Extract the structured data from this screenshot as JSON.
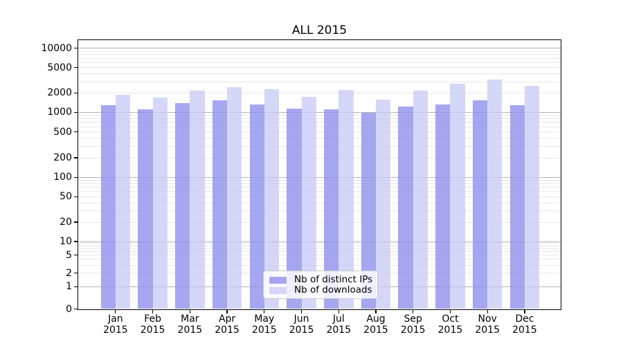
{
  "figure": {
    "background": "#ffffff",
    "axis_color": "#000000"
  },
  "chart_data": {
    "type": "bar",
    "title": "ALL 2015",
    "categories": [
      "Jan",
      "Feb",
      "Mar",
      "Apr",
      "May",
      "Jun",
      "Jul",
      "Aug",
      "Sep",
      "Oct",
      "Nov",
      "Dec"
    ],
    "x_tick_year_line": "2015",
    "series": [
      {
        "name": "Nb of distinct IPs",
        "color": "#8c8eec",
        "alpha": 0.78,
        "values": [
          1290,
          1100,
          1380,
          1520,
          1340,
          1140,
          1120,
          990,
          1220,
          1330,
          1520,
          1300
        ]
      },
      {
        "name": "Nb of downloads",
        "color": "#c5c7f6",
        "alpha": 0.72,
        "values": [
          1890,
          1700,
          2180,
          2440,
          2290,
          1740,
          2230,
          1560,
          2190,
          2790,
          3260,
          2600
        ]
      }
    ],
    "yscale": "symlog",
    "yticks": [
      10000,
      5000,
      2000,
      1000,
      500,
      200,
      100,
      50,
      20,
      10,
      5,
      2,
      1,
      0
    ],
    "ylim": [
      0,
      13300
    ],
    "grid": {
      "major_values": [
        1,
        10,
        100,
        1000,
        10000
      ],
      "major_color": "#b3b3b3",
      "minor_color": "#e8e8e8"
    },
    "legend_position": "lower center"
  }
}
